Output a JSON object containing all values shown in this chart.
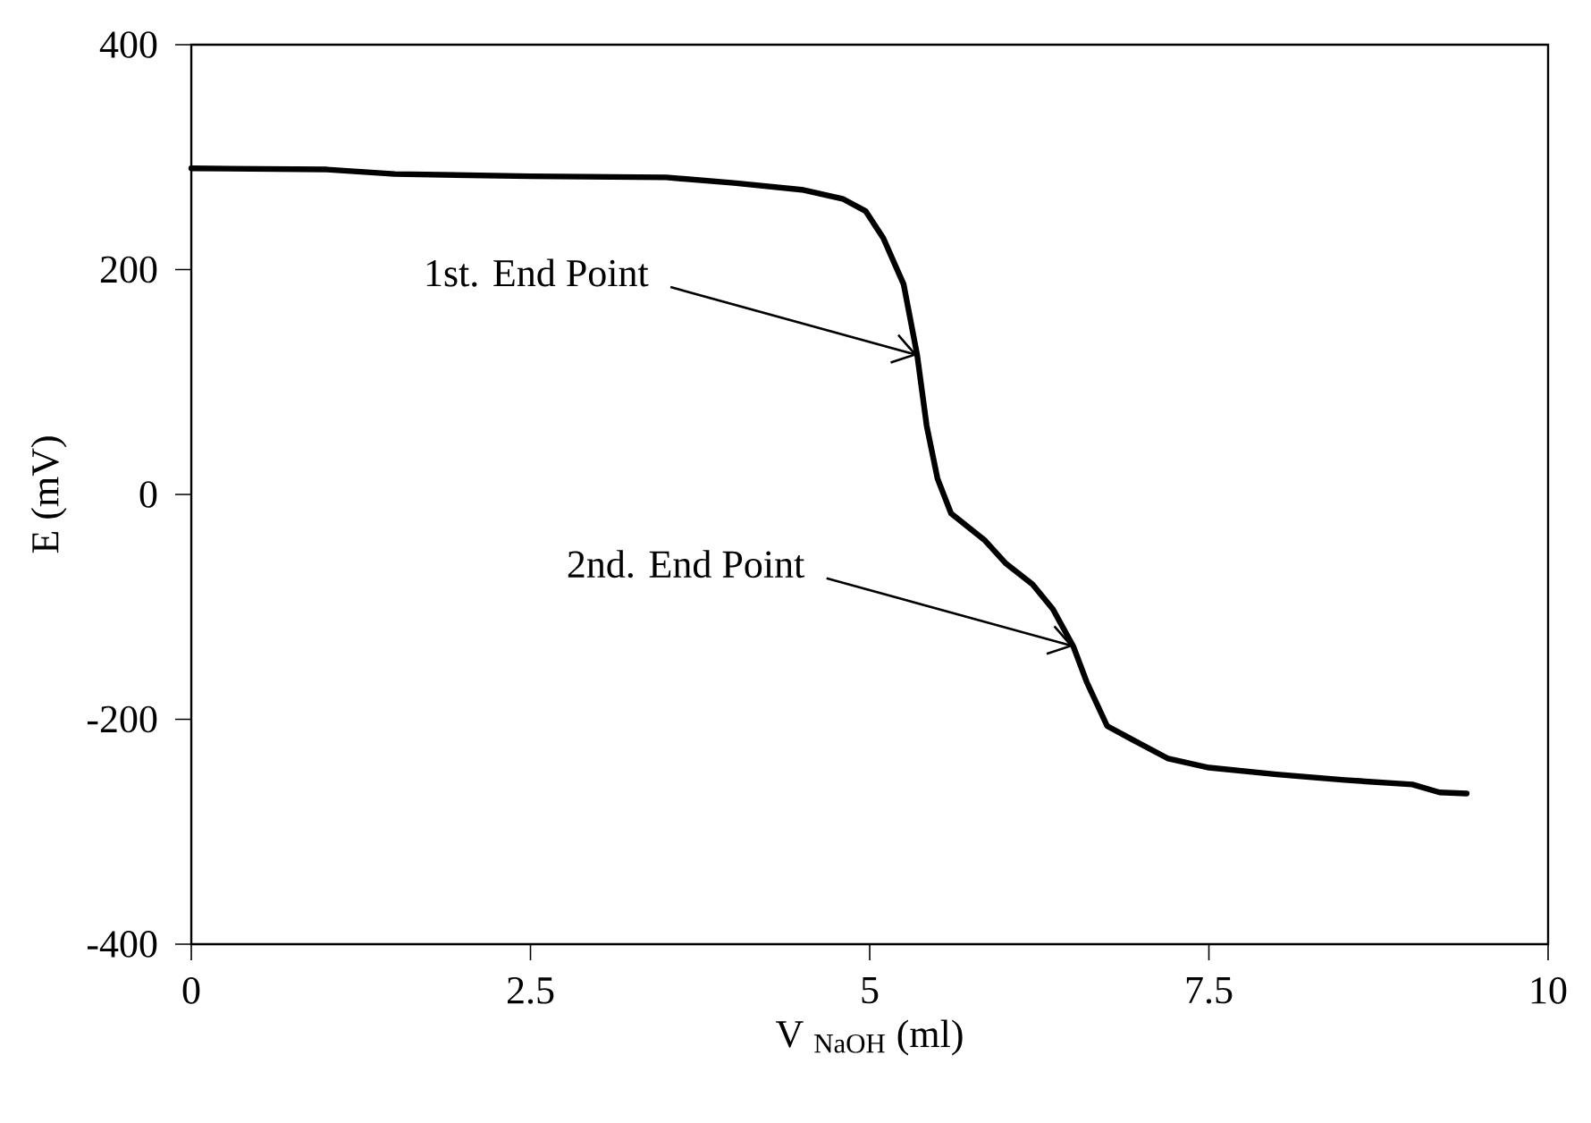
{
  "chart_data": {
    "type": "line",
    "xlabel": "V $_{NaOH}$ (ml)",
    "ylabel": "E (mV)",
    "x": [
      0,
      1,
      1.5,
      2.5,
      3.5,
      4,
      4.5,
      4.8,
      4.97,
      5.1,
      5.25,
      5.35,
      5.42,
      5.5,
      5.6,
      5.85,
      6.0,
      6.2,
      6.35,
      6.5,
      6.6,
      6.75,
      6.95,
      7.2,
      7.5,
      8,
      8.5,
      9,
      9.2,
      9.4
    ],
    "series": [
      {
        "color": "#000000",
        "values": [
          290,
          289,
          285,
          283,
          282,
          277,
          271,
          263,
          252,
          228,
          187,
          124,
          61,
          14,
          -17,
          -41,
          -61,
          -80,
          -102,
          -135,
          -167,
          -206,
          -219,
          -235,
          -243,
          -249,
          -254,
          -258,
          -265,
          -266
        ]
      }
    ],
    "xlim": [
      0,
      10
    ],
    "ylim": [
      -400,
      400
    ],
    "xticks": [
      0,
      2.5,
      5,
      7.5,
      10
    ],
    "yticks": [
      -400,
      -200,
      0,
      200,
      400
    ],
    "grid": false,
    "line_style": "solid",
    "annotations": [
      {
        "text": "1st. End Point",
        "x": 5.35,
        "y": 124
      },
      {
        "text": "2nd. End Point",
        "x": 6.5,
        "y": -135
      }
    ]
  }
}
